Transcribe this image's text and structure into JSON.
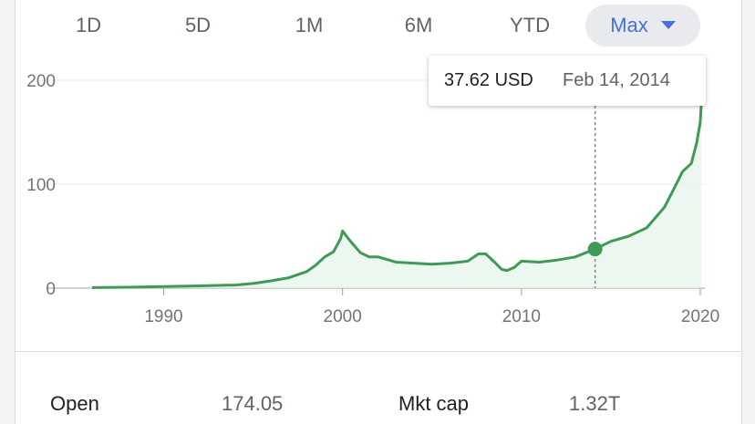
{
  "range_tabs": [
    {
      "label": "1D",
      "active": false
    },
    {
      "label": "5D",
      "active": false
    },
    {
      "label": "1M",
      "active": false
    },
    {
      "label": "6M",
      "active": false
    },
    {
      "label": "YTD",
      "active": false
    },
    {
      "label": "Max",
      "active": true,
      "icon": "caret-down-icon"
    }
  ],
  "tooltip": {
    "price": "37.62 USD",
    "date": "Feb 14, 2014"
  },
  "stats": [
    {
      "label": "Open",
      "value": "174.05"
    },
    {
      "label": "Mkt cap",
      "value": "1.32T"
    }
  ],
  "colors": {
    "line": "#3f9a56",
    "fill": "#e6f4ea",
    "active_tab_text": "#4771d8",
    "active_tab_bg": "#e8eaed",
    "grid": "#e8eaed"
  },
  "chart_data": {
    "type": "area",
    "x_unit": "year",
    "xlim": [
      1986.0,
      2020.05
    ],
    "ylim": [
      0,
      200
    ],
    "y_ticks": [
      0,
      100,
      200
    ],
    "x_ticks": [
      1990,
      2000,
      2010,
      2020
    ],
    "grid": true,
    "highlight": {
      "x": 2014.12,
      "y": 37.62
    },
    "x": [
      1986.0,
      1988.0,
      1990.0,
      1992.0,
      1994.0,
      1995.0,
      1996.0,
      1997.0,
      1998.0,
      1998.5,
      1999.0,
      1999.5,
      1999.9,
      2000.0,
      2000.4,
      2001.0,
      2001.5,
      2002.0,
      2003.0,
      2004.0,
      2005.0,
      2006.0,
      2007.0,
      2007.6,
      2008.0,
      2008.5,
      2008.9,
      2009.2,
      2009.6,
      2010.0,
      2011.0,
      2012.0,
      2013.0,
      2014.12,
      2015.0,
      2016.0,
      2017.0,
      2018.0,
      2018.8,
      2019.0,
      2019.5,
      2019.8,
      2020.0,
      2020.05
    ],
    "y": [
      0.5,
      0.9,
      1.5,
      2.2,
      3.0,
      4.5,
      7.0,
      10.0,
      16.0,
      22.0,
      30.0,
      35.0,
      48.0,
      55.0,
      46.0,
      34.0,
      30.0,
      30.0,
      25.0,
      24.0,
      23.0,
      24.0,
      26.0,
      33.0,
      33.0,
      25.0,
      18.0,
      17.0,
      20.0,
      26.0,
      25.0,
      27.0,
      30.0,
      37.62,
      45.0,
      50.0,
      58.0,
      78.0,
      105.0,
      112.0,
      120.0,
      140.0,
      160.0,
      176.0
    ]
  }
}
